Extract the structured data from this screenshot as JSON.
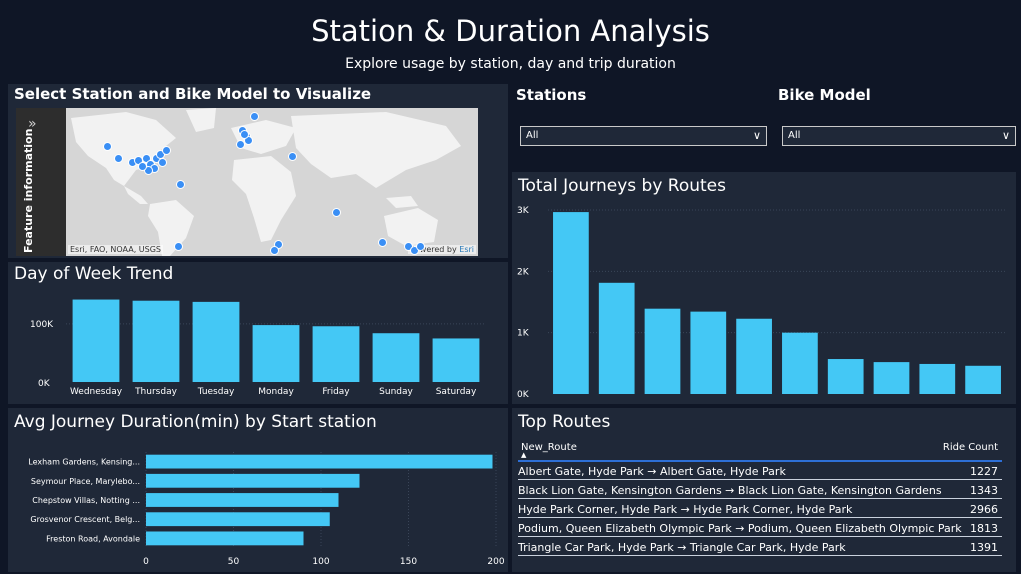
{
  "header": {
    "title": "Station & Duration Analysis",
    "subtitle": "Explore usage by station, day and trip duration"
  },
  "map_panel": {
    "title": "Select Station and Bike Model to Visualize",
    "feature_label": "Feature information",
    "expand_icon": "double-chevron-right-icon",
    "attribution": "Esri, FAO, NOAA, USGS",
    "powered_by": "Powered by",
    "powered_brand": "Esri"
  },
  "filters": {
    "stations": {
      "label": "Stations",
      "value": "All"
    },
    "bike_model": {
      "label": "Bike Model",
      "value": "All"
    }
  },
  "day_of_week": {
    "title": "Day of Week Trend"
  },
  "routes_chart": {
    "title": "Total Journeys by Routes"
  },
  "duration_chart": {
    "title": "Avg Journey Duration(min) by Start station"
  },
  "top_routes": {
    "title": "Top Routes",
    "columns": [
      "New_Route",
      "Ride Count"
    ],
    "rows": [
      {
        "route": "Albert Gate, Hyde Park → Albert Gate, Hyde Park",
        "count": "1227"
      },
      {
        "route": "Black Lion Gate, Kensington Gardens → Black Lion Gate, Kensington Gardens",
        "count": "1343"
      },
      {
        "route": "Hyde Park Corner, Hyde Park → Hyde Park Corner, Hyde Park",
        "count": "2966"
      },
      {
        "route": "Podium, Queen Elizabeth Olympic Park → Podium, Queen Elizabeth Olympic Park",
        "count": "1813"
      },
      {
        "route": "Triangle Car Park, Hyde Park → Triangle Car Park, Hyde Park",
        "count": "1391"
      }
    ]
  },
  "colors": {
    "bar": "#44c8f5",
    "panel": "#1f2838",
    "background": "#0f1626",
    "map_dot": "#3a8ff5"
  },
  "chart_data": [
    {
      "type": "bar",
      "title": "Day of Week Trend",
      "categories": [
        "Wednesday",
        "Thursday",
        "Tuesday",
        "Monday",
        "Friday",
        "Sunday",
        "Saturday"
      ],
      "values": [
        142000,
        140000,
        138000,
        98000,
        96000,
        84000,
        75000
      ],
      "y_ticks": [
        "0K",
        "100K"
      ],
      "ylim": [
        0,
        155000
      ]
    },
    {
      "type": "bar",
      "title": "Total Journeys by Routes",
      "values": [
        2966,
        1813,
        1391,
        1343,
        1227,
        1000,
        570,
        520,
        490,
        460
      ],
      "y_ticks": [
        "0K",
        "1K",
        "2K",
        "3K"
      ],
      "ylim": [
        0,
        3000
      ]
    },
    {
      "type": "bar",
      "orientation": "horizontal",
      "title": "Avg Journey Duration(min) by Start station",
      "categories": [
        "Lexham Gardens, Kensing...",
        "Seymour Place, Marylebo...",
        "Chepstow Villas, Notting ...",
        "Grosvenor Crescent, Belg...",
        "Freston Road, Avondale"
      ],
      "values": [
        198,
        122,
        110,
        105,
        90
      ],
      "x_ticks": [
        "0",
        "50",
        "100",
        "150",
        "200"
      ],
      "xlim": [
        0,
        200
      ]
    }
  ]
}
